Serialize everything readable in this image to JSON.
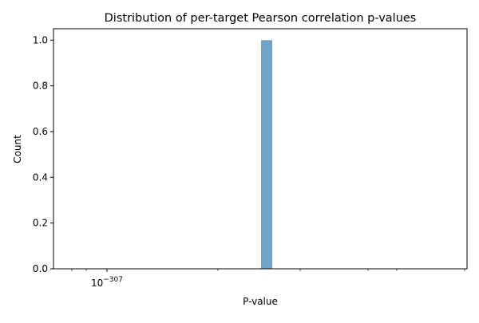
{
  "chart_data": {
    "type": "bar",
    "title": "Distribution of per-target Pearson correlation p-values",
    "xlabel": "P-value",
    "ylabel": "Count",
    "x_scale": "log",
    "x_ticks": [
      {
        "base": "10",
        "exponent": "−307"
      }
    ],
    "y_ticks": [
      "0.0",
      "0.2",
      "0.4",
      "0.6",
      "0.8",
      "1.0"
    ],
    "ylim": [
      0,
      1.05
    ],
    "grid": false,
    "legend": "none",
    "bars": [
      {
        "value": 1.0
      }
    ],
    "colors": {
      "bar": "#72a4c9",
      "axes": "#000000",
      "background": "#ffffff"
    }
  }
}
